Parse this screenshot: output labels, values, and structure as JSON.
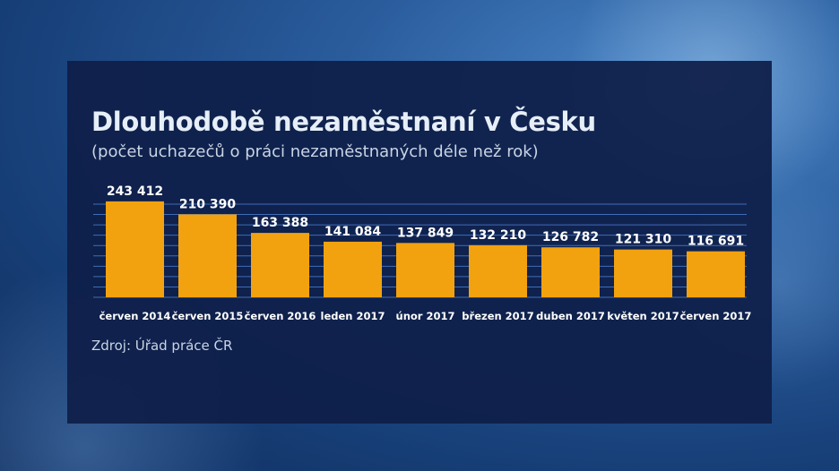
{
  "title": "Dlouhodobě nezaměstnaní v Česku",
  "subtitle": "(počet uchazečů o práci nezaměstnaných déle než rok)",
  "source": "Zdroj: Úřad práce ČR",
  "colors": {
    "bar": "#f2a20f",
    "panel": "#0e1e48",
    "grid": "#3f6db8",
    "text": "#ffffff"
  },
  "chart_data": {
    "type": "bar",
    "title": "Dlouhodobě nezaměstnaní v Česku",
    "subtitle": "(počet uchazečů o práci nezaměstnaných déle než rok)",
    "categories": [
      "červen 2014",
      "červen 2015",
      "červen 2016",
      "leden 2017",
      "únor 2017",
      "březen 2017",
      "duben 2017",
      "květen 2017",
      "červen 2017"
    ],
    "values": [
      243412,
      210390,
      163388,
      141084,
      137849,
      132210,
      126782,
      121310,
      116691
    ],
    "value_labels": [
      "243 412",
      "210 390",
      "163 388",
      "141 084",
      "137 849",
      "132 210",
      "126 782",
      "121 310",
      "116 691"
    ],
    "xlabel": "",
    "ylabel": "",
    "ylim": [
      0,
      250000
    ],
    "grid": true,
    "legend": "none"
  }
}
